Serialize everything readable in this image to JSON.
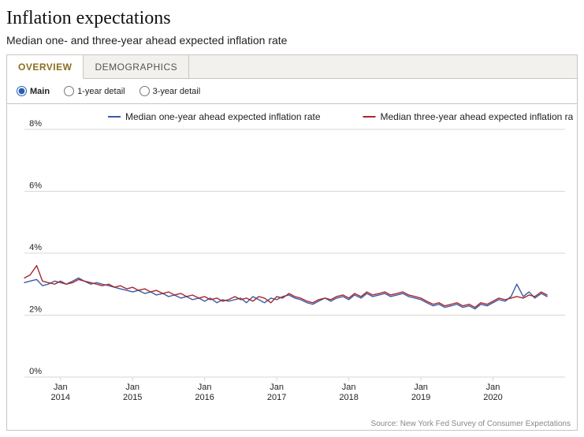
{
  "title": "Inflation expectations",
  "subtitle": "Median one- and three-year ahead expected inflation rate",
  "tabs": [
    {
      "label": "OVERVIEW",
      "active": true
    },
    {
      "label": "DEMOGRAPHICS",
      "active": false
    }
  ],
  "radios": [
    {
      "label": "Main",
      "checked": true
    },
    {
      "label": "1-year detail",
      "checked": false
    },
    {
      "label": "3-year detail",
      "checked": false
    }
  ],
  "chart": {
    "type": "line",
    "background_color": "#ffffff",
    "grid_color": "#d9d7d0",
    "axis_text_color": "#221f1f",
    "tick_font_size": 11,
    "tick_font_family": "Arial, sans-serif",
    "line_width": 1.4,
    "ylim": [
      0,
      8
    ],
    "ytick_step": 2,
    "ytick_suffix": "%",
    "x_labels_top": [
      "Jan",
      "Jan",
      "Jan",
      "Jan",
      "Jan",
      "Jan",
      "Jan"
    ],
    "x_labels_bottom": [
      "2014",
      "2015",
      "2016",
      "2017",
      "2018",
      "2019",
      "2020"
    ],
    "x_start": 2013.5,
    "x_end": 2021.0,
    "legend": {
      "position": "top-center",
      "font_size": 12,
      "items": [
        {
          "label": "Median one-year ahead expected inflation rate",
          "color": "#3b5aa6"
        },
        {
          "label": "Median three-year ahead expected inflation rate",
          "color": "#a7272c"
        }
      ]
    },
    "series": [
      {
        "name": "one_year",
        "color": "#3b5aa6",
        "x": [
          2013.5,
          2013.58,
          2013.67,
          2013.75,
          2013.83,
          2013.92,
          2014.0,
          2014.08,
          2014.17,
          2014.25,
          2014.33,
          2014.42,
          2014.5,
          2014.58,
          2014.67,
          2014.75,
          2014.83,
          2014.92,
          2015.0,
          2015.08,
          2015.17,
          2015.25,
          2015.33,
          2015.42,
          2015.5,
          2015.58,
          2015.67,
          2015.75,
          2015.83,
          2015.92,
          2016.0,
          2016.08,
          2016.17,
          2016.25,
          2016.33,
          2016.42,
          2016.5,
          2016.58,
          2016.67,
          2016.75,
          2016.83,
          2016.92,
          2017.0,
          2017.08,
          2017.17,
          2017.25,
          2017.33,
          2017.42,
          2017.5,
          2017.58,
          2017.67,
          2017.75,
          2017.83,
          2017.92,
          2018.0,
          2018.08,
          2018.17,
          2018.25,
          2018.33,
          2018.42,
          2018.5,
          2018.58,
          2018.67,
          2018.75,
          2018.83,
          2018.92,
          2019.0,
          2019.08,
          2019.17,
          2019.25,
          2019.33,
          2019.42,
          2019.5,
          2019.58,
          2019.67,
          2019.75,
          2019.83,
          2019.92,
          2020.0,
          2020.08,
          2020.17,
          2020.25,
          2020.33,
          2020.42,
          2020.5,
          2020.58,
          2020.67,
          2020.75
        ],
        "y": [
          3.05,
          3.1,
          3.15,
          2.95,
          3.0,
          3.1,
          3.05,
          3.0,
          3.1,
          3.2,
          3.1,
          3.0,
          3.05,
          3.0,
          2.95,
          2.9,
          2.85,
          2.8,
          2.75,
          2.8,
          2.7,
          2.75,
          2.65,
          2.7,
          2.6,
          2.65,
          2.55,
          2.6,
          2.5,
          2.55,
          2.45,
          2.55,
          2.4,
          2.5,
          2.45,
          2.5,
          2.55,
          2.4,
          2.6,
          2.5,
          2.4,
          2.55,
          2.5,
          2.6,
          2.65,
          2.55,
          2.5,
          2.4,
          2.35,
          2.45,
          2.55,
          2.45,
          2.55,
          2.6,
          2.5,
          2.65,
          2.55,
          2.7,
          2.6,
          2.65,
          2.7,
          2.6,
          2.65,
          2.7,
          2.6,
          2.55,
          2.5,
          2.4,
          2.3,
          2.35,
          2.25,
          2.3,
          2.35,
          2.25,
          2.3,
          2.2,
          2.35,
          2.3,
          2.4,
          2.5,
          2.45,
          2.6,
          3.0,
          2.6,
          2.75,
          2.55,
          2.7,
          2.6
        ]
      },
      {
        "name": "three_year",
        "color": "#a7272c",
        "x": [
          2013.5,
          2013.58,
          2013.67,
          2013.75,
          2013.83,
          2013.92,
          2014.0,
          2014.08,
          2014.17,
          2014.25,
          2014.33,
          2014.42,
          2014.5,
          2014.58,
          2014.67,
          2014.75,
          2014.83,
          2014.92,
          2015.0,
          2015.08,
          2015.17,
          2015.25,
          2015.33,
          2015.42,
          2015.5,
          2015.58,
          2015.67,
          2015.75,
          2015.83,
          2015.92,
          2016.0,
          2016.08,
          2016.17,
          2016.25,
          2016.33,
          2016.42,
          2016.5,
          2016.58,
          2016.67,
          2016.75,
          2016.83,
          2016.92,
          2017.0,
          2017.08,
          2017.17,
          2017.25,
          2017.33,
          2017.42,
          2017.5,
          2017.58,
          2017.67,
          2017.75,
          2017.83,
          2017.92,
          2018.0,
          2018.08,
          2018.17,
          2018.25,
          2018.33,
          2018.42,
          2018.5,
          2018.58,
          2018.67,
          2018.75,
          2018.83,
          2018.92,
          2019.0,
          2019.08,
          2019.17,
          2019.25,
          2019.33,
          2019.42,
          2019.5,
          2019.58,
          2019.67,
          2019.75,
          2019.83,
          2019.92,
          2020.0,
          2020.08,
          2020.17,
          2020.25,
          2020.33,
          2020.42,
          2020.5,
          2020.58,
          2020.67,
          2020.75
        ],
        "y": [
          3.2,
          3.3,
          3.6,
          3.1,
          3.05,
          3.0,
          3.1,
          3.0,
          3.05,
          3.15,
          3.1,
          3.05,
          3.0,
          2.95,
          3.0,
          2.9,
          2.95,
          2.85,
          2.9,
          2.8,
          2.85,
          2.75,
          2.8,
          2.7,
          2.75,
          2.65,
          2.7,
          2.6,
          2.65,
          2.55,
          2.6,
          2.5,
          2.55,
          2.45,
          2.5,
          2.6,
          2.5,
          2.55,
          2.45,
          2.6,
          2.55,
          2.4,
          2.6,
          2.55,
          2.7,
          2.6,
          2.55,
          2.45,
          2.4,
          2.5,
          2.55,
          2.5,
          2.6,
          2.65,
          2.55,
          2.7,
          2.6,
          2.75,
          2.65,
          2.7,
          2.75,
          2.65,
          2.7,
          2.75,
          2.65,
          2.6,
          2.55,
          2.45,
          2.35,
          2.4,
          2.3,
          2.35,
          2.4,
          2.3,
          2.35,
          2.25,
          2.4,
          2.35,
          2.45,
          2.55,
          2.5,
          2.55,
          2.6,
          2.55,
          2.65,
          2.6,
          2.75,
          2.65
        ]
      }
    ],
    "source": "Source: New York Fed Survey of Consumer Expectations"
  }
}
